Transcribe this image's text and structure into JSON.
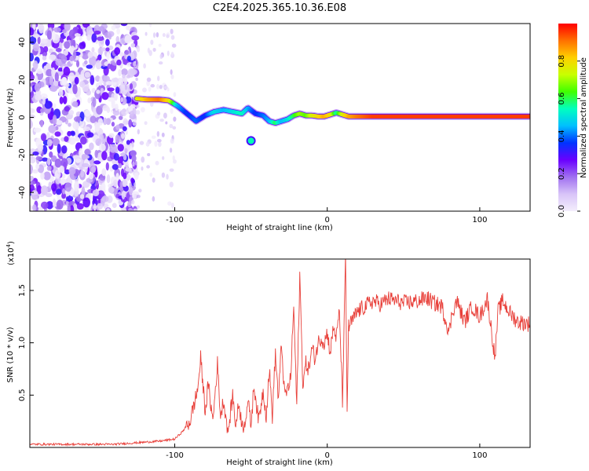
{
  "chart_data": [
    {
      "type": "heatmap",
      "title": "C2E4.2025.365.10.36.E08",
      "xlabel": "Height of straight line (km)",
      "ylabel": "Frequency (Hz)",
      "xlim": [
        -195,
        133
      ],
      "ylim": [
        -50,
        50
      ],
      "xticks": [
        -100,
        0,
        100
      ],
      "xtick_labels": [
        "-100",
        "0",
        "100"
      ],
      "yticks": [
        -40,
        -20,
        0,
        20,
        40
      ],
      "ytick_labels": [
        "-40",
        "-20",
        "0",
        "20",
        "40"
      ],
      "colorbar": {
        "label": "Normalized spectral amplitude",
        "range": [
          0.0,
          1.0
        ],
        "ticks": [
          0.0,
          0.2,
          0.4,
          0.6,
          0.8
        ],
        "tick_labels": [
          "0.0",
          "0.2",
          "0.4",
          "0.6",
          "0.8"
        ],
        "stops": [
          "#f4eefc",
          "#d8c4f8",
          "#a070f0",
          "#6a00ff",
          "#0033ff",
          "#00bfff",
          "#00ffc0",
          "#40ff00",
          "#c8ff00",
          "#ffd000",
          "#ff7000",
          "#ff0000"
        ]
      },
      "ridge": {
        "x": [
          -125,
          -118,
          -110,
          -104,
          -98,
          -92,
          -86,
          -80,
          -74,
          -68,
          -62,
          -56,
          -52,
          -47,
          -42,
          -38,
          -34,
          -30,
          -26,
          -22,
          -18,
          -14,
          -10,
          -6,
          -2,
          2,
          6,
          10,
          14,
          20,
          30,
          50,
          80,
          110,
          133
        ],
        "y": [
          10,
          9.5,
          9.5,
          9,
          6,
          2,
          -2,
          1,
          3,
          4,
          3,
          2,
          5,
          2,
          1,
          -2,
          -3,
          -2,
          -1,
          1,
          2,
          1,
          1,
          0.5,
          0.5,
          1.5,
          2.5,
          1.5,
          0.5,
          0.5,
          0.5,
          0.5,
          0.5,
          0.5,
          0.5
        ],
        "amplitude": [
          0.75,
          0.85,
          0.9,
          0.8,
          0.45,
          0.35,
          0.4,
          0.35,
          0.5,
          0.45,
          0.5,
          0.55,
          0.45,
          0.35,
          0.4,
          0.45,
          0.6,
          0.45,
          0.5,
          0.6,
          0.7,
          0.65,
          0.75,
          0.8,
          0.85,
          0.8,
          0.55,
          0.75,
          0.85,
          0.9,
          0.95,
          0.95,
          0.95,
          0.95,
          0.95
        ]
      },
      "isolated_blob": {
        "x": -50,
        "y": -12.5,
        "amplitude": 0.45
      },
      "noise_region_x": [
        -195,
        -125
      ]
    },
    {
      "type": "line",
      "title": "",
      "xlabel": "Height of straight line (km)",
      "ylabel": "SNR (10 * v/v)",
      "y_multiplier_label": "(x10",
      "y_multiplier_exp": "4",
      "y_multiplier_close": ")",
      "xlim": [
        -195,
        133
      ],
      "ylim": [
        0,
        1.8
      ],
      "xticks": [
        -100,
        0,
        100
      ],
      "xtick_labels": [
        "-100",
        "0",
        "100"
      ],
      "yticks": [
        0.5,
        1.0,
        1.5
      ],
      "ytick_labels": [
        "0.5",
        "1.0",
        "1.5"
      ],
      "series": [
        {
          "name": "SNR",
          "color": "#e8403a",
          "x": [
            -195,
            -180,
            -160,
            -140,
            -130,
            -120,
            -110,
            -100,
            -95,
            -90,
            -85,
            -83,
            -80,
            -78,
            -75,
            -72,
            -70,
            -68,
            -65,
            -62,
            -60,
            -58,
            -55,
            -52,
            -50,
            -48,
            -45,
            -42,
            -40,
            -38,
            -36,
            -34,
            -32,
            -30,
            -28,
            -26,
            -24,
            -22,
            -20,
            -18,
            -16,
            -14,
            -12,
            -10,
            -8,
            -6,
            -4,
            -2,
            0,
            2,
            4,
            6,
            8,
            10,
            12,
            13,
            14,
            16,
            18,
            20,
            25,
            30,
            35,
            40,
            50,
            60,
            65,
            70,
            75,
            80,
            82,
            85,
            90,
            95,
            100,
            105,
            110,
            112,
            115,
            120,
            125,
            133
          ],
          "y": [
            0.03,
            0.03,
            0.03,
            0.03,
            0.04,
            0.05,
            0.06,
            0.08,
            0.15,
            0.25,
            0.55,
            0.85,
            0.35,
            0.6,
            0.25,
            0.8,
            0.3,
            0.45,
            0.15,
            0.5,
            0.2,
            0.42,
            0.15,
            0.45,
            0.2,
            0.6,
            0.25,
            0.55,
            0.3,
            0.75,
            0.3,
            0.9,
            0.45,
            1.0,
            0.5,
            0.55,
            0.65,
            1.35,
            0.4,
            1.65,
            0.6,
            0.8,
            0.75,
            0.95,
            0.85,
            1.0,
            1.05,
            1.0,
            1.1,
            0.9,
            1.15,
            1.05,
            1.3,
            0.45,
            1.8,
            0.35,
            1.15,
            1.2,
            1.25,
            1.3,
            1.35,
            1.4,
            1.37,
            1.42,
            1.38,
            1.4,
            1.43,
            1.38,
            1.35,
            1.1,
            1.3,
            1.4,
            1.2,
            1.35,
            1.25,
            1.42,
            0.85,
            1.3,
            1.4,
            1.28,
            1.2,
            1.18
          ]
        }
      ]
    }
  ]
}
